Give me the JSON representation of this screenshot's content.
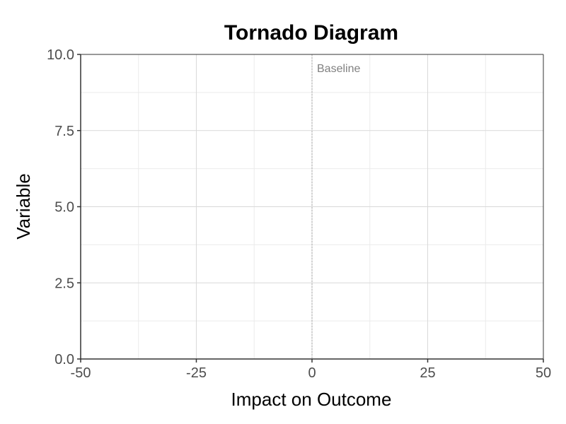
{
  "chart_data": {
    "type": "bar",
    "orientation": "horizontal",
    "title": "Tornado Diagram",
    "xlabel": "Impact on Outcome",
    "ylabel": "Variable",
    "xlim": [
      -50,
      50
    ],
    "ylim": [
      0,
      10
    ],
    "x_ticks": [
      -50,
      -25,
      0,
      25,
      50
    ],
    "x_tick_labels": [
      "-50",
      "-25",
      "0",
      "25",
      "50"
    ],
    "y_ticks": [
      0,
      2.5,
      5,
      7.5,
      10
    ],
    "y_tick_labels": [
      "0.0",
      "2.5",
      "5.0",
      "7.5",
      "10.0"
    ],
    "grid": true,
    "categories": [],
    "series": [],
    "baseline": {
      "x": 0,
      "label": "Baseline"
    }
  },
  "colors": {
    "major_grid": "#d9d9d9",
    "minor_grid": "#ebebeb",
    "axis_line": "#333333",
    "baseline_line": "#a6a6a6",
    "tick_label": "#4d4d4d",
    "annotation": "#808080"
  }
}
